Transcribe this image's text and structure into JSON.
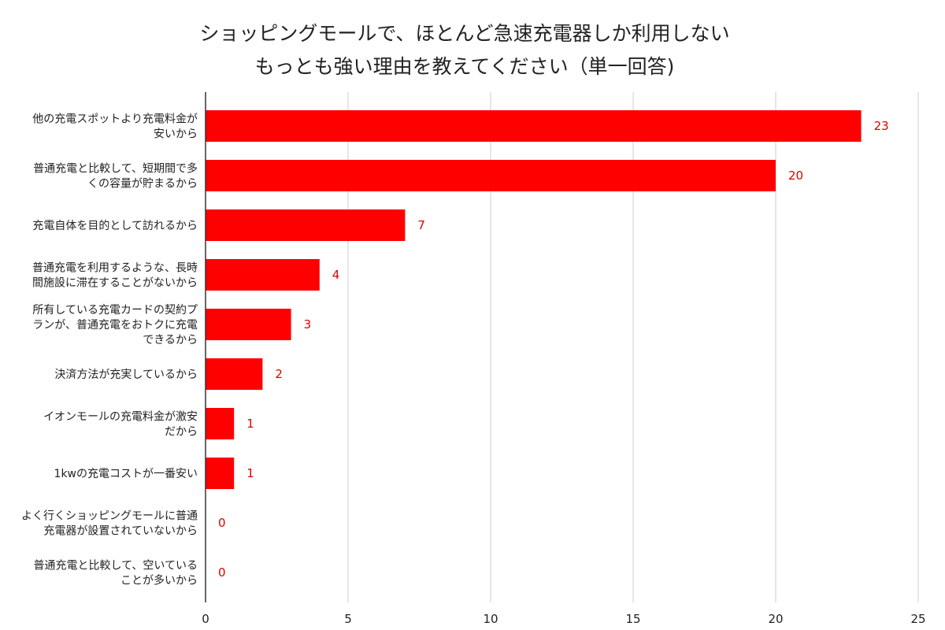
{
  "chart_data": {
    "type": "bar",
    "orientation": "horizontal",
    "title_lines": [
      "ショッピングモールで、ほとんど急速充電器しか利用しない",
      "もっとも強い理由を教えてください（単一回答)"
    ],
    "categories": [
      [
        "他の充電スポットより充電料金が",
        "安いから"
      ],
      [
        "普通充電と比較して、短期間で多",
        "くの容量が貯まるから"
      ],
      [
        "充電自体を目的として訪れるから"
      ],
      [
        "普通充電を利用するような、長時",
        "間施設に滞在することがないから"
      ],
      [
        "所有している充電カードの契約プ",
        "ランが、普通充電をおトクに充電",
        "できるから"
      ],
      [
        "決済方法が充実しているから"
      ],
      [
        "イオンモールの充電料金が激安",
        "だから"
      ],
      [
        "1kwの充電コストが一番安い"
      ],
      [
        "よく行くショッピングモールに普通",
        "充電器が設置されていないから"
      ],
      [
        "普通充電と比較して、空いている",
        "ことが多いから"
      ]
    ],
    "values": [
      23,
      20,
      7,
      4,
      3,
      2,
      1,
      1,
      0,
      0
    ],
    "xlim": [
      0,
      25
    ],
    "xticks": [
      "0",
      "5",
      "10",
      "15",
      "20",
      "25"
    ],
    "grid": "vertical",
    "bar_color": "#ff0000",
    "value_label_color": "#e00000",
    "grid_color": "#cccccc",
    "axis_color": "#333333"
  }
}
